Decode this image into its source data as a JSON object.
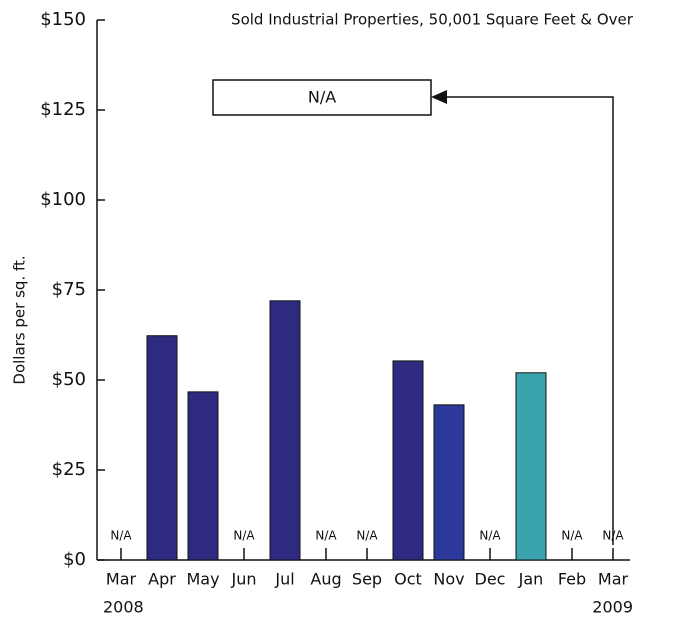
{
  "chart_data": {
    "type": "bar",
    "title": "Sold Industrial Properties, 50,001 Square Feet & Over",
    "y_label": "Dollars per sq. ft.",
    "categories": [
      "Mar",
      "Apr",
      "May",
      "Jun",
      "Jul",
      "Aug",
      "Sep",
      "Oct",
      "Nov",
      "Dec",
      "Jan",
      "Feb",
      "Mar"
    ],
    "year_labels": [
      "2008",
      "2009"
    ],
    "values": [
      null,
      62.3,
      46.7,
      null,
      72,
      null,
      null,
      55.3,
      43.1,
      null,
      52,
      null,
      null
    ],
    "value_labels": [
      "N/A",
      null,
      null,
      "N/A",
      null,
      "N/A",
      "N/A",
      null,
      null,
      "N/A",
      null,
      "N/A",
      "N/A"
    ],
    "colors": [
      "#2e2a80",
      "#2e2a80",
      "#2e2a80",
      "#2e2a80",
      "#2e2a80",
      "#2e2a80",
      "#2e2a80",
      "#2e2a80",
      "#2b3a9a",
      "#2e2a80",
      "#3aa3ad",
      "#2e2a80",
      "#2e2a80"
    ],
    "annotation": "N/A",
    "ylim": [
      0,
      150
    ],
    "yticks": [
      {
        "value": 0,
        "label": "$0"
      },
      {
        "value": 25,
        "label": "$25"
      },
      {
        "value": 50,
        "label": "$50"
      },
      {
        "value": 75,
        "label": "$75"
      },
      {
        "value": 100,
        "label": "$100"
      },
      {
        "value": 125,
        "label": "$125"
      },
      {
        "value": 150,
        "label": "$150"
      }
    ]
  }
}
